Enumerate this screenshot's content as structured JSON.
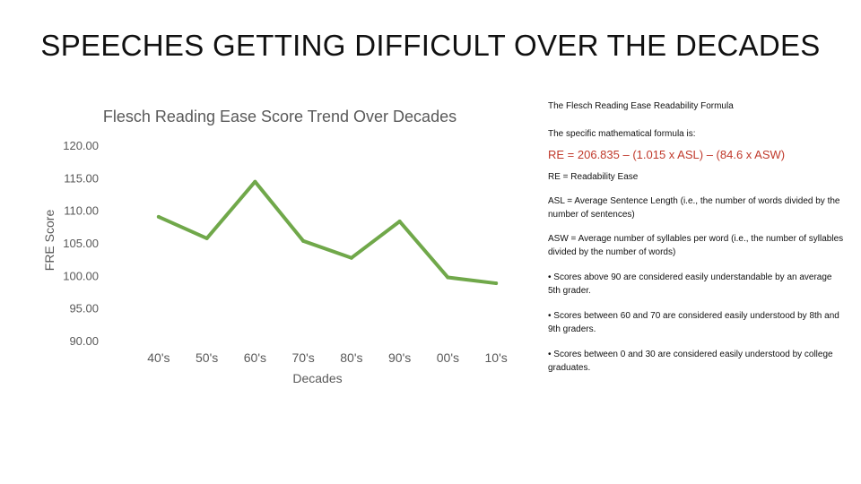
{
  "slide": {
    "title": "SPEECHES GETTING DIFFICULT OVER THE DECADES"
  },
  "chart_data": {
    "type": "line",
    "title": "Flesch Reading Ease Score Trend Over Decades",
    "xlabel": "Decades",
    "ylabel": "FRE Score",
    "categories": [
      "40's",
      "50's",
      "60's",
      "70's",
      "80's",
      "90's",
      "00's",
      "10's"
    ],
    "series": [
      {
        "name": "FRE Score",
        "values": [
          109.0,
          105.7,
          114.4,
          105.3,
          102.7,
          108.3,
          99.7,
          98.8
        ],
        "color": "#70a84a"
      }
    ],
    "ylim": [
      90,
      120
    ],
    "yticks": [
      "90.00",
      "95.00",
      "100.00",
      "105.00",
      "110.00",
      "115.00",
      "120.00"
    ],
    "grid": false,
    "legend": "none"
  },
  "side_panel": {
    "heading": "The Flesch Reading Ease Readability Formula",
    "intro": "The specific mathematical formula is:",
    "formula": "RE = 206.835 – (1.015 x ASL) – (84.6 x ASW)",
    "re_def": "RE = Readability Ease",
    "asl_def": "ASL = Average Sentence Length (i.e., the number of words divided by the number of sentences)",
    "asw_def": "ASW = Average number of syllables per word (i.e., the number of syllables divided by the number of words)",
    "bullet_90": "• Scores above 90 are considered easily understandable by an average 5th grader.",
    "bullet_60_70": "• Scores between 60 and 70 are considered easily understood by 8th and 9th graders.",
    "bullet_0_30": "• Scores between 0 and 30 are considered easily understood by college graduates."
  },
  "colors": {
    "line": "#70a84a",
    "axis_text": "#595959",
    "formula": "#c0392b"
  }
}
